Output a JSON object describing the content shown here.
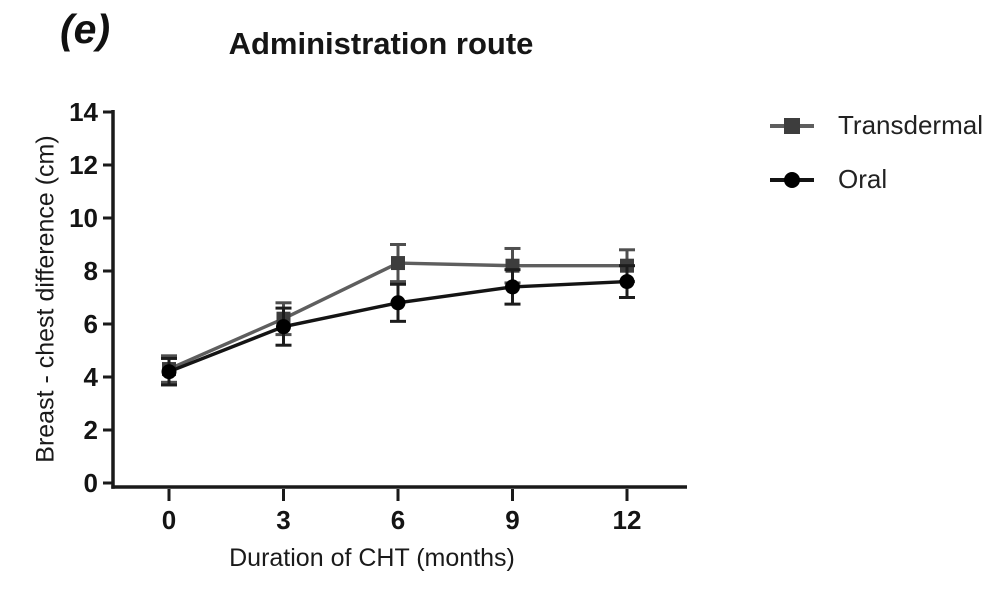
{
  "figure": {
    "panel_label": "(e)",
    "title": "Administration route"
  },
  "chart_data": {
    "type": "line",
    "title": "Administration route",
    "panel_label": "(e)",
    "xlabel": "Duration of CHT (months)",
    "ylabel": "Breast - chest difference (cm)",
    "x": [
      0,
      3,
      6,
      9,
      12
    ],
    "xticks": [
      "0",
      "3",
      "6",
      "9",
      "12"
    ],
    "yticks": [
      "0",
      "2",
      "4",
      "6",
      "8",
      "10",
      "12",
      "14"
    ],
    "ytick_values": [
      0,
      2,
      4,
      6,
      8,
      10,
      12,
      14
    ],
    "ylim": [
      0,
      14
    ],
    "xlim": [
      0,
      12
    ],
    "grid": false,
    "error_bars": true,
    "legend_position": "right",
    "axis_color": "#1a1a1a",
    "series": [
      {
        "name": "Transdermal",
        "marker": "square",
        "line_color": "#5e5e5e",
        "marker_color": "#3d3d3d",
        "error_color": "#4f4f4f",
        "values": [
          4.3,
          6.2,
          8.3,
          8.2,
          8.2
        ],
        "errors": [
          0.5,
          0.6,
          0.7,
          0.65,
          0.6
        ]
      },
      {
        "name": "Oral",
        "marker": "circle",
        "line_color": "#141414",
        "marker_color": "#000000",
        "error_color": "#1c1c1c",
        "values": [
          4.2,
          5.9,
          6.8,
          7.4,
          7.6
        ],
        "errors": [
          0.5,
          0.7,
          0.7,
          0.65,
          0.6
        ]
      }
    ]
  }
}
